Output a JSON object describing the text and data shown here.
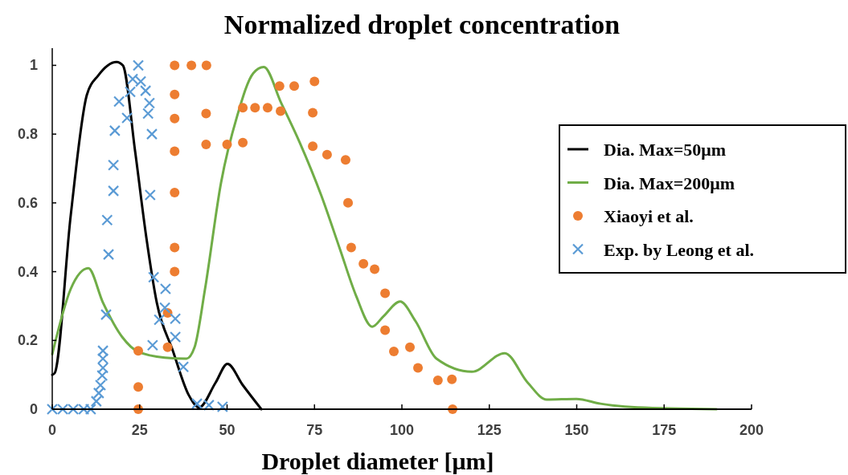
{
  "chart_data": {
    "type": "line",
    "title": "Normalized droplet concentration",
    "xlabel": "Droplet diameter [μm]",
    "xlim": [
      0,
      200
    ],
    "xticks": [
      0,
      25,
      50,
      75,
      100,
      125,
      150,
      175,
      200
    ],
    "ylim": [
      0,
      1.05
    ],
    "yticks": [
      0,
      0.2,
      0.4,
      0.6,
      0.8,
      1
    ],
    "grid": false,
    "legend": "right",
    "series": [
      {
        "name": "Dia. Max=50μm",
        "color": "#000000",
        "marker": "none",
        "x": [
          0,
          0.7,
          5.3,
          9.9,
          13.1,
          18.4,
          20.2,
          23.7,
          26.9,
          29.9,
          34.5,
          39.1,
          42,
          46.7,
          50.1,
          54.5,
          59.8
        ],
        "values": [
          0.1,
          0.105,
          0.565,
          0.914,
          0.97,
          1.01,
          1.0,
          0.75,
          0.5,
          0.31,
          0.17,
          0.04,
          0.005,
          0.077,
          0.132,
          0.07,
          0
        ]
      },
      {
        "name": "Dia. Max=200μm",
        "color": "#70ad47",
        "marker": "none",
        "x": [
          0,
          5.3,
          10.3,
          14.5,
          20,
          24.6,
          32.2,
          38.4,
          40.7,
          43.7,
          48.3,
          52.9,
          57.5,
          60.5,
          65.5,
          70.8,
          77,
          82.3,
          86.9,
          91.5,
          94.7,
          99.5,
          103.9,
          109.9,
          120,
          129.4,
          136,
          141.4,
          149.9,
          156.8,
          167.4,
          190
        ],
        "values": [
          0.16,
          0.35,
          0.41,
          0.31,
          0.21,
          0.167,
          0.15,
          0.147,
          0.18,
          0.35,
          0.66,
          0.853,
          0.977,
          0.995,
          0.89,
          0.775,
          0.62,
          0.465,
          0.33,
          0.24,
          0.27,
          0.313,
          0.256,
          0.147,
          0.109,
          0.163,
          0.077,
          0.028,
          0.03,
          0.016,
          0.005,
          0
        ]
      },
      {
        "name": "Xiaoyi et al.",
        "type": "scatter",
        "color": "#ed7d31",
        "marker": "circle",
        "x": [
          24.6,
          24.6,
          24.6,
          33,
          33,
          35,
          35,
          35,
          35,
          35,
          35,
          35,
          39.8,
          44.1,
          44,
          44,
          50,
          54.5,
          54.5,
          58,
          61.6,
          65.3,
          65,
          69.2,
          75,
          74.5,
          74.5,
          78.6,
          83.9,
          84.6,
          85.5,
          89,
          92.2,
          95.2,
          95.2,
          97.7,
          102.3,
          104.6,
          110.3,
          114.3,
          114.5
        ],
        "values": [
          0.17,
          0.065,
          0,
          0.28,
          0.18,
          1.0,
          0.915,
          0.845,
          0.75,
          0.63,
          0.47,
          0.4,
          1.0,
          1.0,
          0.86,
          0.77,
          0.77,
          0.775,
          0.877,
          0.877,
          0.877,
          0.867,
          0.94,
          0.94,
          0.953,
          0.862,
          0.765,
          0.74,
          0.725,
          0.6,
          0.47,
          0.423,
          0.407,
          0.337,
          0.23,
          0.168,
          0.18,
          0.12,
          0.084,
          0.087,
          0
        ]
      },
      {
        "name": "Exp. by Leong et al.",
        "type": "scatter",
        "color": "#5b9bd5",
        "marker": "cross",
        "x": [
          0,
          3,
          6,
          9,
          11,
          12.6,
          13.3,
          13.8,
          14.3,
          14.5,
          14.5,
          14.5,
          15.4,
          16.1,
          15.7,
          17.5,
          17.5,
          17.9,
          19.1,
          21.4,
          22.3,
          23,
          24.6,
          25.3,
          26.7,
          27.8,
          27.4,
          28.5,
          28,
          29,
          32.4,
          32.2,
          30.6,
          35.2,
          35.2,
          28.7,
          37.5,
          41.4,
          44.8,
          48.7
        ],
        "values": [
          0,
          0,
          0,
          0,
          0,
          0.023,
          0.047,
          0.07,
          0.098,
          0.12,
          0.147,
          0.17,
          0.275,
          0.45,
          0.55,
          0.635,
          0.71,
          0.81,
          0.895,
          0.847,
          0.923,
          0.96,
          1.0,
          0.953,
          0.926,
          0.89,
          0.86,
          0.8,
          0.623,
          0.384,
          0.35,
          0.295,
          0.26,
          0.263,
          0.21,
          0.186,
          0.123,
          0.016,
          0.012,
          0.007
        ]
      }
    ]
  }
}
